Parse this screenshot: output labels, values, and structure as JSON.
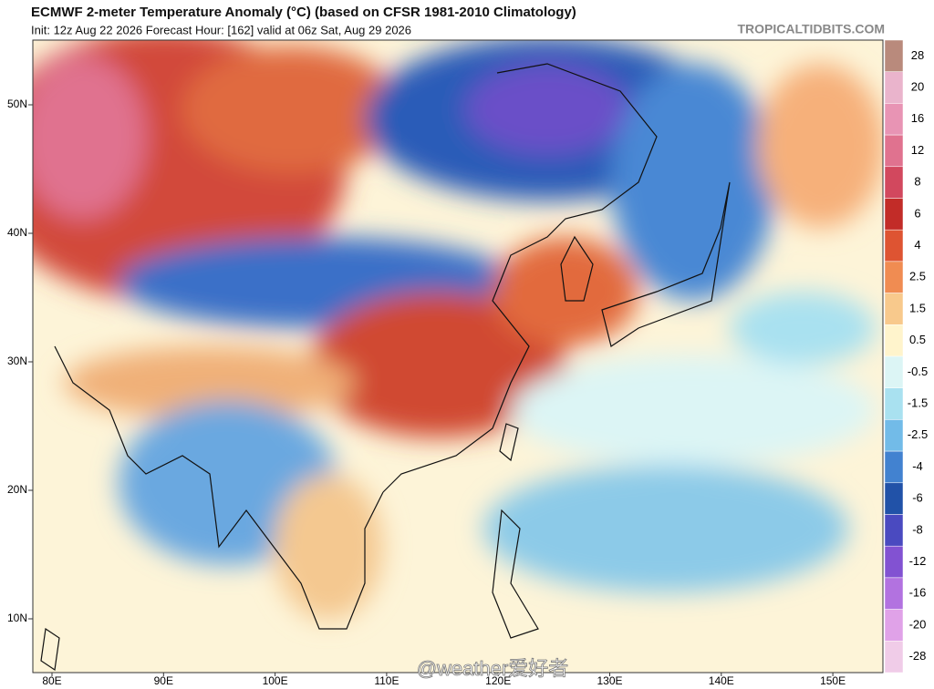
{
  "header": {
    "title": "ECMWF 2-meter Temperature Anomaly (°C) (based on CFSR 1981-2010 Climatology)",
    "subtitle": "Init: 12z Aug 22 2026   Forecast Hour: [162]   valid at 06z Sat, Aug 29 2026",
    "source": "TROPICALTIDBITS.COM"
  },
  "map": {
    "lat_labels": [
      "50N",
      "40N",
      "30N",
      "20N",
      "10N"
    ],
    "lon_labels": [
      "80E",
      "90E",
      "100E",
      "110E",
      "120E",
      "130E",
      "140E",
      "150E"
    ],
    "watermark": "@weather爱好者"
  },
  "colorbar": [
    {
      "label": "28",
      "color": "#b98a7c"
    },
    {
      "label": "20",
      "color": "#eab4cc"
    },
    {
      "label": "16",
      "color": "#e894b4"
    },
    {
      "label": "12",
      "color": "#e0728f"
    },
    {
      "label": "8",
      "color": "#d2485e"
    },
    {
      "label": "6",
      "color": "#c22c28"
    },
    {
      "label": "4",
      "color": "#de5432"
    },
    {
      "label": "2.5",
      "color": "#f08c52"
    },
    {
      "label": "1.5",
      "color": "#f8c98c"
    },
    {
      "label": "0.5",
      "color": "#fff4cc"
    },
    {
      "label": "-0.5",
      "color": "#dcf5f5"
    },
    {
      "label": "-1.5",
      "color": "#a9e1f0"
    },
    {
      "label": "-2.5",
      "color": "#72bbe8"
    },
    {
      "label": "-4",
      "color": "#4282d0"
    },
    {
      "label": "-6",
      "color": "#2152a8"
    },
    {
      "label": "-8",
      "color": "#4a4ac0"
    },
    {
      "label": "-12",
      "color": "#8252d2"
    },
    {
      "label": "-16",
      "color": "#b272e0"
    },
    {
      "label": "-20",
      "color": "#e0a2e8"
    },
    {
      "label": "-28",
      "color": "#f0cce8"
    }
  ]
}
